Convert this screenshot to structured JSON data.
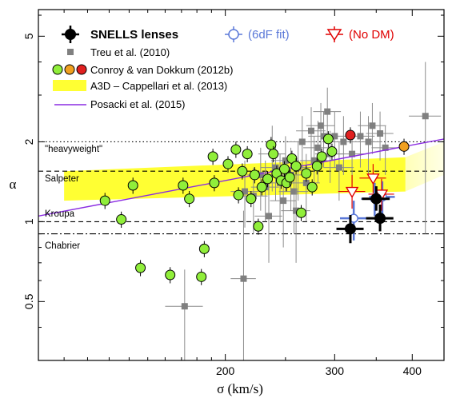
{
  "chart_data": {
    "type": "scatter",
    "x_scale": "log",
    "y_scale": "log",
    "xlabel": "σ (km/s)",
    "ylabel": "α",
    "xlim": [
      100,
      450
    ],
    "ylim": [
      0.3,
      6.3
    ],
    "x_ticks": [
      {
        "value": 200,
        "label": "200"
      },
      {
        "value": 300,
        "label": "300"
      },
      {
        "value": 400,
        "label": "400"
      }
    ],
    "y_ticks": [
      {
        "value": 0.5,
        "label": "0.5"
      },
      {
        "value": 1,
        "label": "1"
      },
      {
        "value": 2,
        "label": "2"
      },
      {
        "value": 5,
        "label": "5"
      }
    ],
    "reference_lines": [
      {
        "name": "\"heavyweight\"",
        "y": 2.0,
        "style": "dotted"
      },
      {
        "name": "Salpeter",
        "y": 1.55,
        "style": "dashed"
      },
      {
        "name": "Kroupa",
        "y": 1.0,
        "style": "dashed"
      },
      {
        "name": "Chabrier",
        "y": 0.9,
        "style": "dashdot"
      }
    ],
    "legend": {
      "top": [
        {
          "label": "SNELLS lenses",
          "color": "#000000"
        },
        {
          "label": "(6dF fit)",
          "color": "#5a78d8"
        },
        {
          "label": "(No DM)",
          "color": "#e00000"
        }
      ],
      "entries": [
        {
          "label": "Treu et al. (2010)",
          "color": "#808080"
        },
        {
          "label": "Conroy & van Dokkum (2012b)",
          "colors": [
            "#90ee3a",
            "#f0a020",
            "#e02020"
          ]
        },
        {
          "label": "A3D – Cappellari et al. (2013)",
          "color": "#ffff33"
        },
        {
          "label": "Posacki et al. (2015)",
          "color": "#8a2be2"
        }
      ]
    },
    "a3d_band": {
      "left": [
        [
          110,
          1.2
        ],
        [
          110,
          1.55
        ]
      ],
      "right": [
        [
          390,
          1.3
        ],
        [
          390,
          1.75
        ]
      ]
    },
    "a3d_band_faded": {
      "upper": [
        [
          390,
          1.75
        ],
        [
          450,
          2.0
        ]
      ],
      "lower": [
        [
          390,
          1.3
        ],
        [
          450,
          1.5
        ]
      ]
    },
    "posacki_line": [
      [
        100,
        1.05
      ],
      [
        450,
        2.05
      ]
    ],
    "snells": [
      {
        "x": 318,
        "y": 0.94,
        "xerr": 16,
        "ylo": 0.83,
        "yhi": 1.06
      },
      {
        "x": 350,
        "y": 1.22,
        "xerr": 18,
        "ylo": 1.1,
        "yhi": 1.36
      },
      {
        "x": 355,
        "y": 1.03,
        "xerr": 18,
        "ylo": 0.92,
        "yhi": 1.16
      }
    ],
    "snells_6df": [
      {
        "x": 322,
        "y": 1.03,
        "xerr": 16,
        "ylo": 0.85,
        "yhi": 1.2
      },
      {
        "x": 348,
        "y": 1.22,
        "xerr": 17,
        "ylo": 1.05,
        "yhi": 1.4
      },
      {
        "x": 358,
        "y": 1.24,
        "xerr": 17,
        "ylo": 1.05,
        "yhi": 1.42
      }
    ],
    "snells_nodm": [
      {
        "x": 320,
        "y": 1.3,
        "xerr": 16,
        "ylo": 1.12,
        "yhi": 1.5
      },
      {
        "x": 346,
        "y": 1.46,
        "xerr": 17,
        "ylo": 1.28,
        "yhi": 1.65
      },
      {
        "x": 357,
        "y": 1.27,
        "xerr": 17,
        "ylo": 1.1,
        "yhi": 1.45
      }
    ],
    "treu": [
      {
        "x": 172,
        "y": 0.48,
        "xerr": 12,
        "ylo": 0.3,
        "yhi": 0.66
      },
      {
        "x": 214,
        "y": 0.61,
        "xerr": 10,
        "ylo": 0.3,
        "yhi": 1.1
      },
      {
        "x": 215,
        "y": 1.3,
        "xerr": 11,
        "ylo": 0.95,
        "yhi": 1.7
      },
      {
        "x": 222,
        "y": 1.25,
        "xerr": 12,
        "ylo": 0.9,
        "yhi": 1.6
      },
      {
        "x": 228,
        "y": 1.5,
        "xerr": 11,
        "ylo": 1.1,
        "yhi": 1.9
      },
      {
        "x": 232,
        "y": 1.35,
        "xerr": 12,
        "ylo": 1.0,
        "yhi": 1.7
      },
      {
        "x": 238,
        "y": 1.8,
        "xerr": 12,
        "ylo": 1.3,
        "yhi": 2.3
      },
      {
        "x": 241,
        "y": 1.6,
        "xerr": 13,
        "ylo": 1.2,
        "yhi": 2.0
      },
      {
        "x": 245,
        "y": 1.4,
        "xerr": 13,
        "ylo": 1.0,
        "yhi": 1.8
      },
      {
        "x": 248,
        "y": 1.2,
        "xerr": 12,
        "ylo": 0.8,
        "yhi": 1.6
      },
      {
        "x": 250,
        "y": 1.7,
        "xerr": 13,
        "ylo": 1.3,
        "yhi": 2.1
      },
      {
        "x": 255,
        "y": 1.5,
        "xerr": 12,
        "ylo": 1.1,
        "yhi": 1.9
      },
      {
        "x": 258,
        "y": 1.3,
        "xerr": 14,
        "ylo": 0.9,
        "yhi": 1.7
      },
      {
        "x": 262,
        "y": 1.6,
        "xerr": 13,
        "ylo": 1.2,
        "yhi": 2.0
      },
      {
        "x": 266,
        "y": 2.0,
        "xerr": 14,
        "ylo": 1.5,
        "yhi": 2.5
      },
      {
        "x": 270,
        "y": 1.4,
        "xerr": 14,
        "ylo": 1.0,
        "yhi": 1.8
      },
      {
        "x": 275,
        "y": 2.2,
        "xerr": 15,
        "ylo": 1.7,
        "yhi": 2.7
      },
      {
        "x": 278,
        "y": 1.7,
        "xerr": 14,
        "ylo": 1.3,
        "yhi": 2.1
      },
      {
        "x": 282,
        "y": 1.9,
        "xerr": 15,
        "ylo": 1.4,
        "yhi": 2.4
      },
      {
        "x": 285,
        "y": 2.3,
        "xerr": 15,
        "ylo": 1.8,
        "yhi": 2.8
      },
      {
        "x": 288,
        "y": 2.1,
        "xerr": 16,
        "ylo": 1.6,
        "yhi": 2.6
      },
      {
        "x": 292,
        "y": 2.6,
        "xerr": 15,
        "ylo": 2.0,
        "yhi": 3.2
      },
      {
        "x": 295,
        "y": 1.8,
        "xerr": 16,
        "ylo": 1.4,
        "yhi": 2.2
      },
      {
        "x": 300,
        "y": 2.1,
        "xerr": 16,
        "ylo": 1.6,
        "yhi": 2.6
      },
      {
        "x": 305,
        "y": 1.6,
        "xerr": 17,
        "ylo": 1.2,
        "yhi": 2.0
      },
      {
        "x": 310,
        "y": 2.0,
        "xerr": 16,
        "ylo": 1.5,
        "yhi": 2.5
      },
      {
        "x": 320,
        "y": 1.8,
        "xerr": 17,
        "ylo": 1.4,
        "yhi": 2.2
      },
      {
        "x": 330,
        "y": 2.1,
        "xerr": 18,
        "ylo": 1.6,
        "yhi": 2.6
      },
      {
        "x": 340,
        "y": 2.0,
        "xerr": 18,
        "ylo": 1.5,
        "yhi": 2.5
      },
      {
        "x": 345,
        "y": 2.3,
        "xerr": 18,
        "ylo": 1.8,
        "yhi": 2.8
      },
      {
        "x": 355,
        "y": 2.15,
        "xerr": 18,
        "ylo": 1.7,
        "yhi": 2.6
      },
      {
        "x": 362,
        "y": 1.9,
        "xerr": 18,
        "ylo": 1.5,
        "yhi": 2.3
      },
      {
        "x": 420,
        "y": 2.5,
        "xerr": 25,
        "ylo": 0.9,
        "yhi": 4.0
      },
      {
        "x": 260,
        "y": 1.1,
        "xerr": 14,
        "ylo": 0.7,
        "yhi": 1.5
      },
      {
        "x": 235,
        "y": 1.05,
        "xerr": 12,
        "ylo": 0.7,
        "yhi": 1.4
      }
    ],
    "cvd": [
      {
        "x": 128,
        "y": 1.2,
        "color": "#90ee3a"
      },
      {
        "x": 136,
        "y": 1.02,
        "color": "#90ee3a"
      },
      {
        "x": 142,
        "y": 1.37,
        "color": "#90ee3a"
      },
      {
        "x": 146,
        "y": 0.67,
        "color": "#90ee3a"
      },
      {
        "x": 163,
        "y": 0.63,
        "color": "#90ee3a"
      },
      {
        "x": 171,
        "y": 1.37,
        "color": "#90ee3a"
      },
      {
        "x": 175,
        "y": 1.22,
        "color": "#90ee3a"
      },
      {
        "x": 183,
        "y": 0.62,
        "color": "#90ee3a"
      },
      {
        "x": 185,
        "y": 0.79,
        "color": "#90ee3a"
      },
      {
        "x": 191,
        "y": 1.76,
        "color": "#90ee3a"
      },
      {
        "x": 192,
        "y": 1.4,
        "color": "#90ee3a"
      },
      {
        "x": 202,
        "y": 1.65,
        "color": "#90ee3a"
      },
      {
        "x": 208,
        "y": 1.87,
        "color": "#90ee3a"
      },
      {
        "x": 210,
        "y": 1.26,
        "color": "#90ee3a"
      },
      {
        "x": 213,
        "y": 1.55,
        "color": "#90ee3a"
      },
      {
        "x": 217,
        "y": 1.8,
        "color": "#90ee3a"
      },
      {
        "x": 220,
        "y": 1.22,
        "color": "#90ee3a"
      },
      {
        "x": 223,
        "y": 1.5,
        "color": "#90ee3a"
      },
      {
        "x": 226,
        "y": 0.96,
        "color": "#90ee3a"
      },
      {
        "x": 229,
        "y": 1.35,
        "color": "#90ee3a"
      },
      {
        "x": 234,
        "y": 1.45,
        "color": "#90ee3a"
      },
      {
        "x": 237,
        "y": 1.95,
        "color": "#90ee3a"
      },
      {
        "x": 239,
        "y": 1.8,
        "color": "#90ee3a"
      },
      {
        "x": 242,
        "y": 1.52,
        "color": "#90ee3a"
      },
      {
        "x": 246,
        "y": 1.43,
        "color": "#90ee3a"
      },
      {
        "x": 249,
        "y": 1.58,
        "color": "#90ee3a"
      },
      {
        "x": 251,
        "y": 1.4,
        "color": "#90ee3a"
      },
      {
        "x": 254,
        "y": 1.47,
        "color": "#90ee3a"
      },
      {
        "x": 256,
        "y": 1.73,
        "color": "#90ee3a"
      },
      {
        "x": 260,
        "y": 1.62,
        "color": "#90ee3a"
      },
      {
        "x": 265,
        "y": 1.08,
        "color": "#90ee3a"
      },
      {
        "x": 270,
        "y": 1.52,
        "color": "#90ee3a"
      },
      {
        "x": 276,
        "y": 1.35,
        "color": "#90ee3a"
      },
      {
        "x": 281,
        "y": 1.62,
        "color": "#90ee3a"
      },
      {
        "x": 286,
        "y": 1.76,
        "color": "#90ee3a"
      },
      {
        "x": 293,
        "y": 2.05,
        "color": "#90ee3a"
      },
      {
        "x": 297,
        "y": 1.84,
        "color": "#90ee3a"
      },
      {
        "x": 318,
        "y": 2.12,
        "color": "#e02020"
      },
      {
        "x": 388,
        "y": 1.92,
        "color": "#f0a020"
      }
    ]
  }
}
